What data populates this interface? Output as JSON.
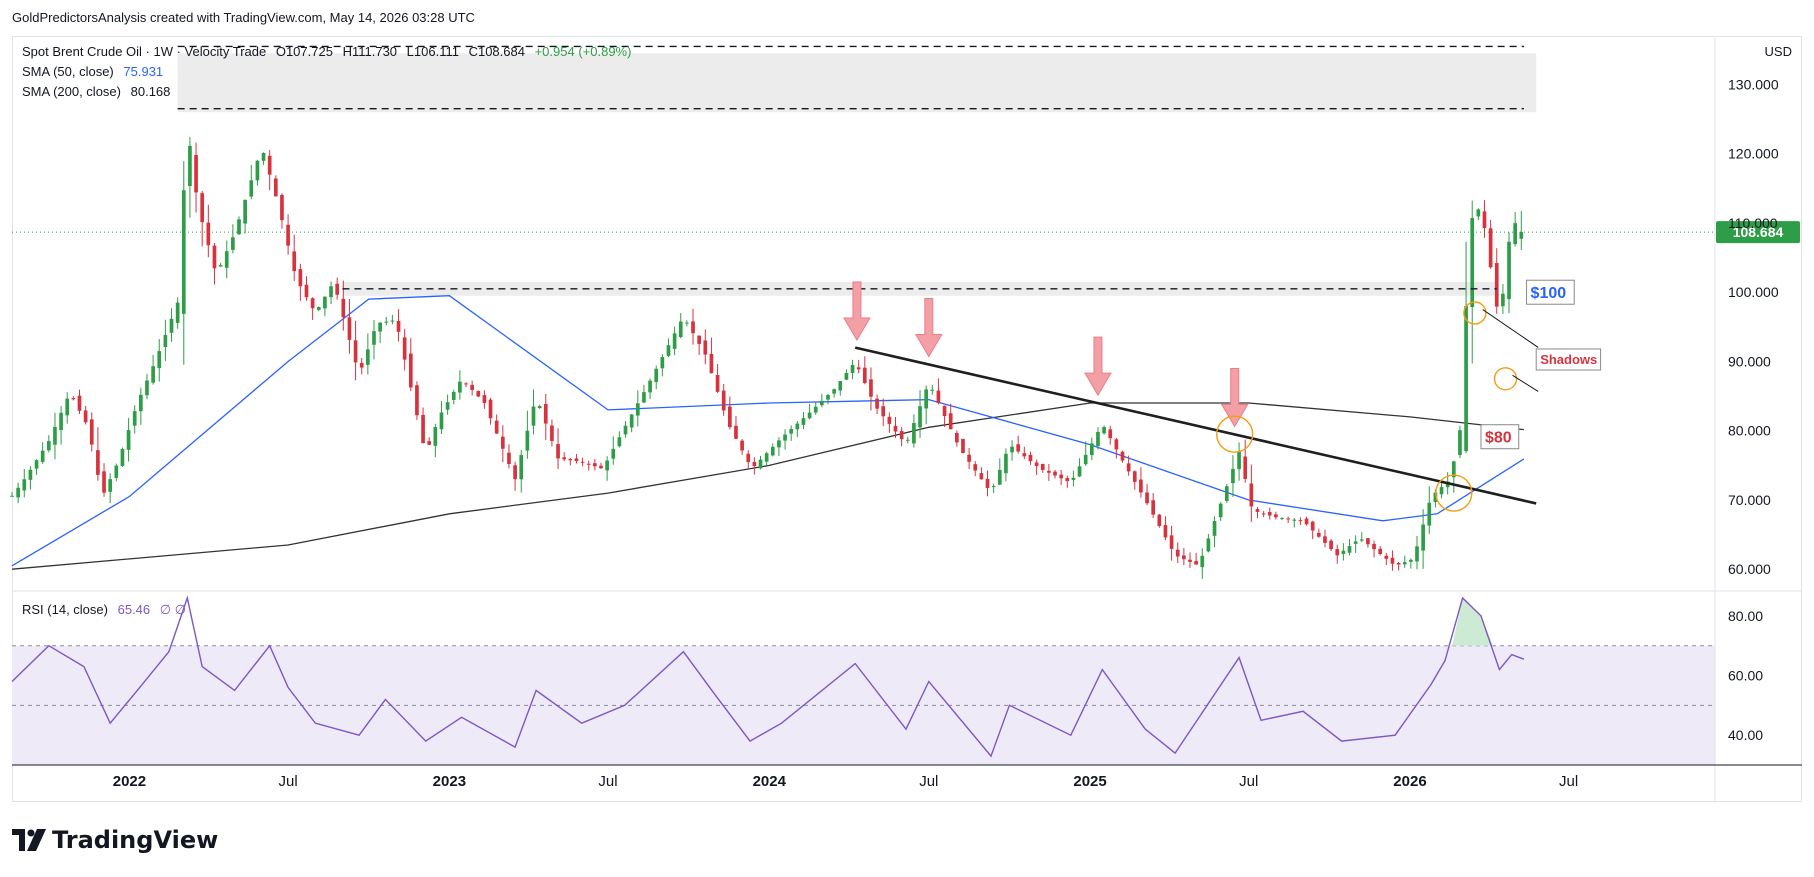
{
  "header": {
    "attribution": "GoldPredictorsAnalysis created with TradingView.com, May 14, 2026 03:28 UTC",
    "currency": "USD"
  },
  "legend": {
    "symbol": "Spot Brent Crude Oil · 1W · Velocity Trade",
    "open": "O107.725",
    "high": "H111.730",
    "low": "L106.111",
    "close": "C108.684",
    "change": "+0.954 (+0.89%)",
    "sma50_label": "SMA (50, close)",
    "sma50_value": "75.931",
    "sma200_label": "SMA (200, close)",
    "sma200_value": "80.168",
    "rsi_label": "RSI (14, close)",
    "rsi_value": "65.46",
    "rsi_extra": "∅ ∅"
  },
  "annotations": {
    "label_100": "$100",
    "label_80": "$80",
    "label_shadows": "Shadows",
    "last_price": "108.684"
  },
  "footer": {
    "brand": "TradingView"
  },
  "colors": {
    "up": "#2e9d47",
    "down": "#d6333f",
    "sma50": "#2962ff",
    "sma200": "#333333",
    "rsi": "#7e57c2",
    "rsi_band": "#efeaf8",
    "zone": "#ececec",
    "arrow": "#f2a0a5",
    "circle": "#f39c12",
    "last_price_bg": "#2e9d47"
  },
  "chart_data": [
    {
      "type": "candlestick",
      "title": "Spot Brent Crude Oil · 1W · Velocity Trade",
      "ylim": [
        57,
        137
      ],
      "y_ticks": [
        60,
        70,
        80,
        90,
        100,
        110,
        120,
        130
      ],
      "y_tick_labels": [
        "60.000",
        "70.000",
        "80.000",
        "90.000",
        "100.000",
        "110.000",
        "120.000",
        "130.000"
      ],
      "x_ticks": [
        "2022",
        "Jul",
        "2023",
        "Jul",
        "2024",
        "Jul",
        "2025",
        "Jul",
        "2026",
        "Jul"
      ],
      "x_tick_dates": [
        "2022-01-01",
        "2022-07-01",
        "2023-01-01",
        "2023-07-01",
        "2024-01-01",
        "2024-07-01",
        "2025-01-01",
        "2025-07-01",
        "2026-01-01",
        "2026-07-01"
      ],
      "x_range": [
        "2021-08-20",
        "2026-12-15"
      ],
      "last_bar_date": "2026-05-11",
      "close_series": [
        [
          "2021-08-20",
          70.6
        ],
        [
          "2021-09-01",
          72.6
        ],
        [
          "2021-10-01",
          78.5
        ],
        [
          "2021-10-25",
          85.5
        ],
        [
          "2021-11-15",
          80.5
        ],
        [
          "2021-12-01",
          70.5
        ],
        [
          "2021-12-20",
          75.8
        ],
        [
          "2022-01-10",
          84.0
        ],
        [
          "2022-02-01",
          90.5
        ],
        [
          "2022-02-25",
          98.5
        ],
        [
          "2022-03-08",
          124.0
        ],
        [
          "2022-03-20",
          112.5
        ],
        [
          "2022-04-10",
          102.5
        ],
        [
          "2022-05-01",
          108.5
        ],
        [
          "2022-06-01",
          121.0
        ],
        [
          "2022-06-20",
          112.5
        ],
        [
          "2022-07-10",
          102.0
        ],
        [
          "2022-08-01",
          97.0
        ],
        [
          "2022-08-22",
          101.5
        ],
        [
          "2022-09-20",
          88.0
        ],
        [
          "2022-10-10",
          95.5
        ],
        [
          "2022-11-01",
          96.0
        ],
        [
          "2022-12-05",
          76.5
        ],
        [
          "2022-12-20",
          82.0
        ],
        [
          "2023-01-15",
          87.5
        ],
        [
          "2023-02-10",
          84.0
        ],
        [
          "2023-03-17",
          73.0
        ],
        [
          "2023-04-10",
          85.0
        ],
        [
          "2023-05-05",
          76.0
        ],
        [
          "2023-06-01",
          75.5
        ],
        [
          "2023-06-25",
          74.5
        ],
        [
          "2023-07-20",
          80.5
        ],
        [
          "2023-08-15",
          86.5
        ],
        [
          "2023-09-25",
          96.5
        ],
        [
          "2023-10-20",
          91.0
        ],
        [
          "2023-11-15",
          81.0
        ],
        [
          "2023-12-12",
          74.5
        ],
        [
          "2024-01-15",
          79.0
        ],
        [
          "2024-02-15",
          82.5
        ],
        [
          "2024-03-15",
          86.0
        ],
        [
          "2024-04-08",
          90.0
        ],
        [
          "2024-05-01",
          83.5
        ],
        [
          "2024-06-05",
          78.0
        ],
        [
          "2024-07-01",
          87.0
        ],
        [
          "2024-08-05",
          77.5
        ],
        [
          "2024-09-10",
          71.0
        ],
        [
          "2024-10-01",
          78.0
        ],
        [
          "2024-11-05",
          74.5
        ],
        [
          "2024-12-10",
          72.5
        ],
        [
          "2025-01-15",
          81.0
        ],
        [
          "2025-02-10",
          75.0
        ],
        [
          "2025-03-05",
          70.0
        ],
        [
          "2025-04-08",
          62.0
        ],
        [
          "2025-05-05",
          60.5
        ],
        [
          "2025-06-20",
          77.0
        ],
        [
          "2025-07-05",
          68.5
        ],
        [
          "2025-08-01",
          67.5
        ],
        [
          "2025-09-01",
          67.0
        ],
        [
          "2025-10-10",
          62.0
        ],
        [
          "2025-11-05",
          64.5
        ],
        [
          "2025-12-15",
          60.5
        ],
        [
          "2026-01-05",
          61.5
        ],
        [
          "2026-01-25",
          70.5
        ],
        [
          "2026-02-16",
          73.0
        ],
        [
          "2026-03-02",
          82.0
        ],
        [
          "2026-03-09",
          110.0
        ],
        [
          "2026-03-23",
          112.5
        ],
        [
          "2026-04-13",
          95.5
        ],
        [
          "2026-04-27",
          110.5
        ],
        [
          "2026-05-11",
          108.684
        ]
      ],
      "sma50": [
        [
          "2021-08-20",
          60.5
        ],
        [
          "2022-01-01",
          70.5
        ],
        [
          "2022-07-01",
          90.0
        ],
        [
          "2022-10-01",
          99.0
        ],
        [
          "2023-01-01",
          99.5
        ],
        [
          "2023-07-01",
          83.0
        ],
        [
          "2024-01-01",
          84.0
        ],
        [
          "2024-07-01",
          84.5
        ],
        [
          "2025-01-01",
          78.0
        ],
        [
          "2025-07-01",
          70.0
        ],
        [
          "2025-12-01",
          67.0
        ],
        [
          "2026-02-01",
          68.0
        ],
        [
          "2026-05-11",
          75.931
        ]
      ],
      "sma200": [
        [
          "2021-08-20",
          60.0
        ],
        [
          "2022-07-01",
          63.5
        ],
        [
          "2023-01-01",
          68.0
        ],
        [
          "2023-07-01",
          71.0
        ],
        [
          "2024-01-01",
          75.0
        ],
        [
          "2024-07-01",
          80.5
        ],
        [
          "2025-01-01",
          84.0
        ],
        [
          "2025-07-01",
          84.0
        ],
        [
          "2026-01-01",
          82.0
        ],
        [
          "2026-05-11",
          80.168
        ]
      ],
      "zones": [
        {
          "from": [
            "2022-02-25",
            126.0
          ],
          "to": [
            "2026-05-25",
            134.5
          ]
        },
        {
          "from": [
            "2022-09-01",
            99.5
          ],
          "to": [
            "2026-04-10",
            101.5
          ]
        }
      ],
      "dashed_levels": [
        {
          "value": 135.5,
          "from": "2022-02-25",
          "to": "2026-05-11"
        },
        {
          "value": 126.5,
          "from": "2022-02-25",
          "to": "2026-05-11"
        },
        {
          "value": 100.5,
          "from": "2022-09-01",
          "to": "2026-04-10"
        }
      ],
      "trendline": {
        "from": [
          "2024-04-08",
          92.0
        ],
        "to": [
          "2026-05-25",
          69.5
        ]
      },
      "arrow_dates": [
        "2024-04-10",
        "2024-07-01",
        "2025-01-10",
        "2025-06-15"
      ],
      "circles": [
        [
          "2025-06-15",
          79.5
        ],
        [
          "2026-02-20",
          71.0
        ],
        [
          "2026-03-16",
          97.0
        ],
        [
          "2026-04-20",
          87.5
        ]
      ],
      "labels": [
        {
          "text": "$100",
          "value": 100.0
        },
        {
          "text": "$80",
          "value": 80.0
        },
        {
          "text": "Shadows",
          "value": 90.0
        }
      ]
    },
    {
      "type": "line",
      "title": "RSI (14, close)",
      "ylim": [
        30,
        88
      ],
      "y_ticks": [
        40,
        60,
        80
      ],
      "y_tick_labels": [
        "40.00",
        "60.00",
        "80.00"
      ],
      "bands": [
        30,
        50,
        70
      ],
      "rsi": [
        [
          "2021-08-20",
          58
        ],
        [
          "2021-10-01",
          70
        ],
        [
          "2021-11-10",
          63
        ],
        [
          "2021-12-10",
          44
        ],
        [
          "2022-01-10",
          55
        ],
        [
          "2022-02-15",
          68
        ],
        [
          "2022-03-08",
          86
        ],
        [
          "2022-03-25",
          63
        ],
        [
          "2022-05-01",
          55
        ],
        [
          "2022-06-10",
          70
        ],
        [
          "2022-07-01",
          56
        ],
        [
          "2022-08-01",
          44
        ],
        [
          "2022-09-20",
          40
        ],
        [
          "2022-10-20",
          52
        ],
        [
          "2022-12-05",
          38
        ],
        [
          "2023-01-15",
          46
        ],
        [
          "2023-03-17",
          36
        ],
        [
          "2023-04-10",
          55
        ],
        [
          "2023-06-01",
          44
        ],
        [
          "2023-07-20",
          50
        ],
        [
          "2023-09-25",
          68
        ],
        [
          "2023-10-30",
          54
        ],
        [
          "2023-12-10",
          38
        ],
        [
          "2024-01-15",
          44
        ],
        [
          "2024-04-08",
          64
        ],
        [
          "2024-06-05",
          42
        ],
        [
          "2024-07-01",
          58
        ],
        [
          "2024-09-10",
          33
        ],
        [
          "2024-10-01",
          50
        ],
        [
          "2024-12-10",
          40
        ],
        [
          "2025-01-15",
          62
        ],
        [
          "2025-03-05",
          42
        ],
        [
          "2025-04-08",
          34
        ],
        [
          "2025-06-20",
          66
        ],
        [
          "2025-07-15",
          45
        ],
        [
          "2025-09-01",
          48
        ],
        [
          "2025-10-15",
          38
        ],
        [
          "2025-12-15",
          40
        ],
        [
          "2026-01-25",
          57
        ],
        [
          "2026-02-10",
          65
        ],
        [
          "2026-03-02",
          86
        ],
        [
          "2026-03-23",
          80
        ],
        [
          "2026-04-13",
          62
        ],
        [
          "2026-04-27",
          67
        ],
        [
          "2026-05-11",
          65.46
        ]
      ]
    }
  ]
}
